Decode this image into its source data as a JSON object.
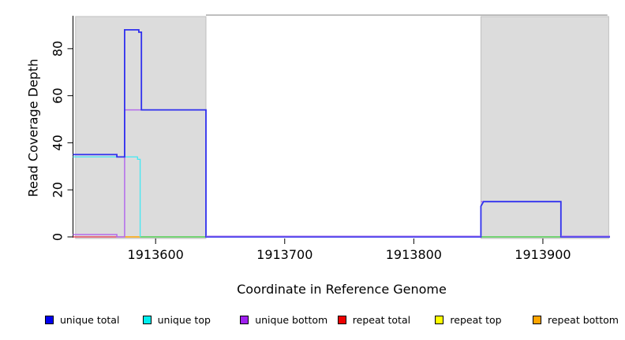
{
  "figure": {
    "background": "#FFFFFF"
  },
  "chart_data": {
    "type": "line",
    "title": "",
    "xlabel": "Coordinate in Reference Genome",
    "ylabel": "Read Coverage Depth",
    "x_ticks": [
      1913600,
      1913700,
      1913800,
      1913900
    ],
    "y_ticks": [
      0,
      20,
      40,
      60,
      80
    ],
    "xlim": [
      1913536,
      1913952
    ],
    "ylim": [
      0,
      94
    ],
    "grid": false,
    "legend_position": "bottom",
    "shaded_regions": [
      {
        "from": 1913538,
        "to": 1913639,
        "fill": "#DCDCDC",
        "stroke": "#BFBFBF"
      },
      {
        "from": 1913852,
        "to": 1913951,
        "fill": "#DCDCDC",
        "stroke": "#BFBFBF"
      }
    ],
    "cap_line": {
      "from": 1913639,
      "to": 1913950,
      "value": 94.3,
      "color": "#999999"
    },
    "series": [
      {
        "name": "repeat total",
        "color": "#E8304A",
        "width": 1.3,
        "segments": [
          [
            [
              1913536,
              0
            ],
            [
              1913575,
              0
            ]
          ]
        ]
      },
      {
        "name": "repeat top",
        "color": "#FFFF00",
        "width": 1.2,
        "segments": []
      },
      {
        "name": "repeat bottom",
        "color": "#FFA500",
        "width": 1.6,
        "segments": [
          [
            [
              1913575,
              0
            ],
            [
              1913588,
              0
            ]
          ]
        ]
      },
      {
        "name": "top-strand zero blend",
        "color": "#33CC33",
        "width": 1.3,
        "segments": [
          [
            [
              1913588,
              0
            ],
            [
              1913639,
              0
            ]
          ],
          [
            [
              1913852,
              0
            ],
            [
              1913914,
              0
            ]
          ]
        ]
      },
      {
        "name": "unique top",
        "color": "#44E8F2",
        "width": 1.3,
        "segments": [
          [
            [
              1913536,
              34
            ],
            [
              1913586,
              34
            ],
            [
              1913586,
              33
            ],
            [
              1913588,
              33
            ],
            [
              1913588,
              0
            ]
          ]
        ]
      },
      {
        "name": "unique bottom",
        "color": "#B36BEB",
        "width": 1.5,
        "segments": [
          [
            [
              1913536,
              1
            ],
            [
              1913570,
              1
            ],
            [
              1913570,
              0
            ],
            [
              1913576,
              0
            ],
            [
              1913576,
              54
            ],
            [
              1913589,
              54
            ]
          ],
          [
            [
              1913852,
              15
            ],
            [
              1913914,
              15
            ]
          ]
        ]
      },
      {
        "name": "unique total",
        "color": "#3030EE",
        "width": 1.8,
        "segments": [
          [
            [
              1913536,
              35
            ],
            [
              1913570,
              35
            ],
            [
              1913570,
              34
            ],
            [
              1913576,
              34
            ],
            [
              1913576,
              88
            ],
            [
              1913587,
              88
            ],
            [
              1913587,
              87
            ],
            [
              1913589,
              87
            ],
            [
              1913589,
              54
            ],
            [
              1913639,
              54
            ],
            [
              1913639,
              0
            ],
            [
              1913852,
              0
            ],
            [
              1913852,
              13
            ],
            [
              1913853,
              14
            ],
            [
              1913854,
              15
            ],
            [
              1913914,
              15
            ],
            [
              1913914,
              0
            ],
            [
              1913952,
              0
            ]
          ]
        ]
      },
      {
        "name": "unique bottom zero overlay",
        "color": "#A06BE8",
        "width": 1.0,
        "dy": -1,
        "segments": [
          [
            [
              1913639,
              0
            ],
            [
              1913852,
              0
            ]
          ],
          [
            [
              1913914,
              0
            ],
            [
              1913952,
              0
            ]
          ]
        ]
      }
    ],
    "legend": [
      {
        "label": "unique total",
        "color": "#0000EE"
      },
      {
        "label": "unique top",
        "color": "#00EEEE"
      },
      {
        "label": "unique bottom",
        "color": "#A020F0"
      },
      {
        "label": "repeat total",
        "color": "#EE0000"
      },
      {
        "label": "repeat top",
        "color": "#FFFF00"
      },
      {
        "label": "repeat bottom",
        "color": "#FFA500"
      }
    ]
  }
}
